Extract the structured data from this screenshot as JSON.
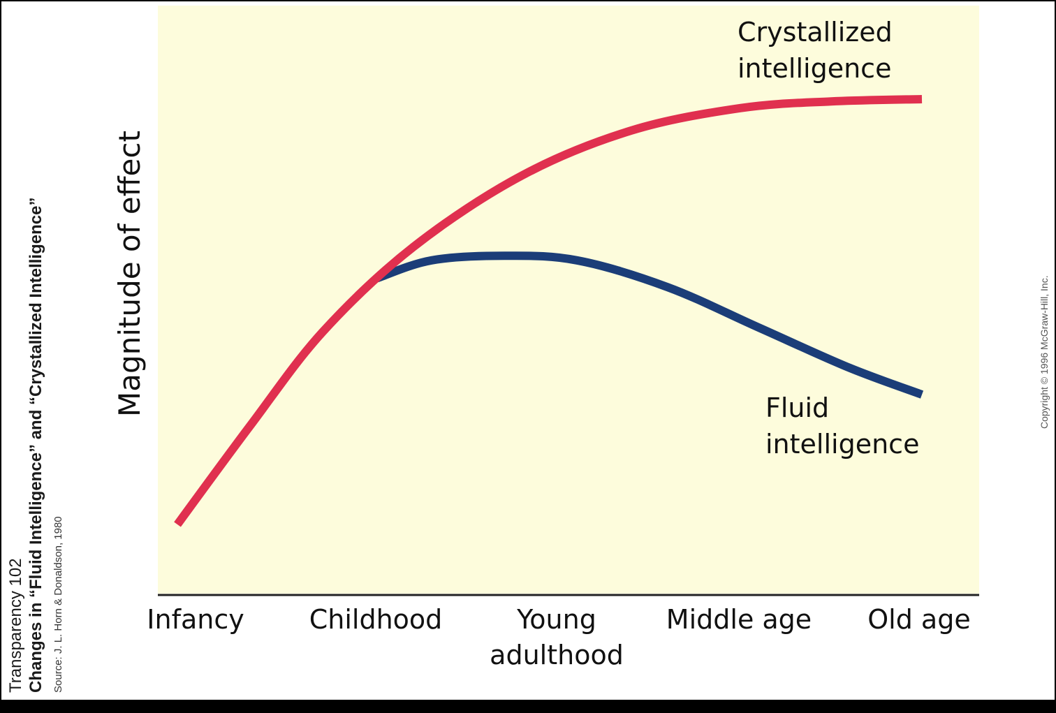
{
  "sidebar": {
    "line1": "Transparency 102",
    "line2": "Changes in “Fluid Intelligence” and “Crystallized Intelligence”",
    "line3": "Source: J. L. Horn & Donaldson, 1980"
  },
  "copyright": "Copyright © 1996 McGraw-Hill, Inc.",
  "colors": {
    "background": "#fdfcdc",
    "crystallized": "#e0304f",
    "fluid": "#1b3d78",
    "axis": "#222222",
    "frame": "#000000"
  },
  "chart_data": {
    "type": "line",
    "title": "",
    "ylabel": "Magnitude of effect",
    "xlabel": "",
    "categories": [
      "Infancy",
      "Childhood",
      "Young adulthood",
      "Middle age",
      "Old age"
    ],
    "category_lines": [
      [
        "Infancy"
      ],
      [
        "Childhood"
      ],
      [
        "Young",
        "adulthood"
      ],
      [
        "Middle age"
      ],
      [
        "Old age"
      ]
    ],
    "xlim": [
      -0.1,
      4.3
    ],
    "ylim": [
      0,
      100
    ],
    "grid": false,
    "series": [
      {
        "name": "Crystallized intelligence",
        "label_lines": [
          "Crystallized",
          "intelligence"
        ],
        "color": "#e0304f",
        "x": [
          -0.1,
          0.3,
          0.7,
          1.2,
          1.8,
          2.4,
          3.0,
          3.5,
          4.0
        ],
        "y": [
          5,
          27,
          48,
          67,
          83,
          93,
          98,
          99.5,
          100
        ]
      },
      {
        "name": "Fluid intelligence",
        "label_lines": [
          "Fluid",
          "intelligence"
        ],
        "color": "#1b3d78",
        "x": [
          1.0,
          1.3,
          1.7,
          2.1,
          2.6,
          3.1,
          3.6,
          4.0
        ],
        "y": [
          60,
          64,
          65,
          64,
          58,
          49,
          40,
          34
        ]
      }
    ]
  }
}
